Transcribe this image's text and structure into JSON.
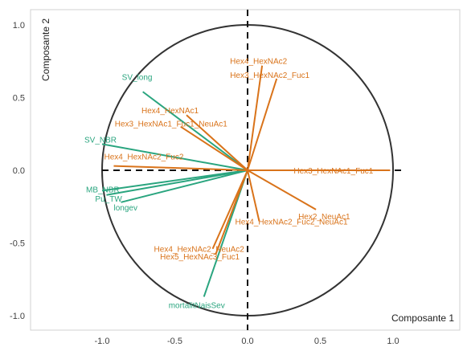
{
  "chart_data": {
    "type": "scatter",
    "subtype": "correlation-circle",
    "title": "",
    "xlabel": "Composante 1",
    "ylabel": "Composante 2",
    "xlim": [
      -1.1,
      1.45
    ],
    "ylim": [
      -1.1,
      1.1
    ],
    "xticks": [
      "-1.0",
      "-0.5",
      "0.0",
      "0.5",
      "1.0"
    ],
    "xtick_values": [
      -1.0,
      -0.5,
      0.0,
      0.5,
      1.0
    ],
    "yticks": [
      "1.0",
      "0.5",
      "0.0",
      "-0.5",
      "-1.0"
    ],
    "ytick_values": [
      1.0,
      0.5,
      0.0,
      -0.5,
      -1.0
    ],
    "unit_circle_radius": 1.0,
    "grid": false,
    "colors": {
      "green_group": "#2aa57f",
      "orange_group": "#d9731a",
      "circle": "#333333",
      "axes": "#111111"
    },
    "vectors": [
      {
        "label": "SV_long",
        "x": -0.72,
        "y": 0.54,
        "group": "green"
      },
      {
        "label": "SV_NBR",
        "x": -1.0,
        "y": 0.18,
        "group": "green"
      },
      {
        "label": "MB_NBR",
        "x": -1.0,
        "y": -0.14,
        "group": "green"
      },
      {
        "label": "Pu_TW",
        "x": -0.97,
        "y": -0.17,
        "group": "green"
      },
      {
        "label": "longev",
        "x": -0.87,
        "y": -0.22,
        "group": "green"
      },
      {
        "label": "mortalitNaisSev",
        "x": -0.3,
        "y": -0.87,
        "group": "green"
      },
      {
        "label": "Hex4_HexNAc2",
        "x": 0.1,
        "y": 0.72,
        "group": "orange"
      },
      {
        "label": "Hex3_HexNAc2_Fuc1",
        "x": 0.2,
        "y": 0.63,
        "group": "orange"
      },
      {
        "label": "Hex4_HexNAc1",
        "x": -0.42,
        "y": 0.38,
        "group": "orange"
      },
      {
        "label": "Hex3_HexNAc1_Fuc1_NeuAc1",
        "x": -0.46,
        "y": 0.3,
        "group": "orange"
      },
      {
        "label": "Hex4_HexNAc2_Fuc2",
        "x": -0.92,
        "y": 0.03,
        "group": "orange"
      },
      {
        "label": "Hex3_HexNAc1_Fuc1",
        "x": 0.98,
        "y": 0.0,
        "group": "orange"
      },
      {
        "label": "Hex2_NeuAc1",
        "x": 0.47,
        "y": -0.27,
        "group": "orange"
      },
      {
        "label": "Hex4_HexNAc2_Fuc2_NeuAc1",
        "x": 0.08,
        "y": -0.35,
        "group": "orange"
      },
      {
        "label": "Hex4_HexNAc2_NeuAc2",
        "x": -0.24,
        "y": -0.54,
        "group": "orange"
      },
      {
        "label": "Hex5_HexNAc3_Fuc1",
        "x": -0.22,
        "y": -0.58,
        "group": "orange"
      }
    ]
  }
}
